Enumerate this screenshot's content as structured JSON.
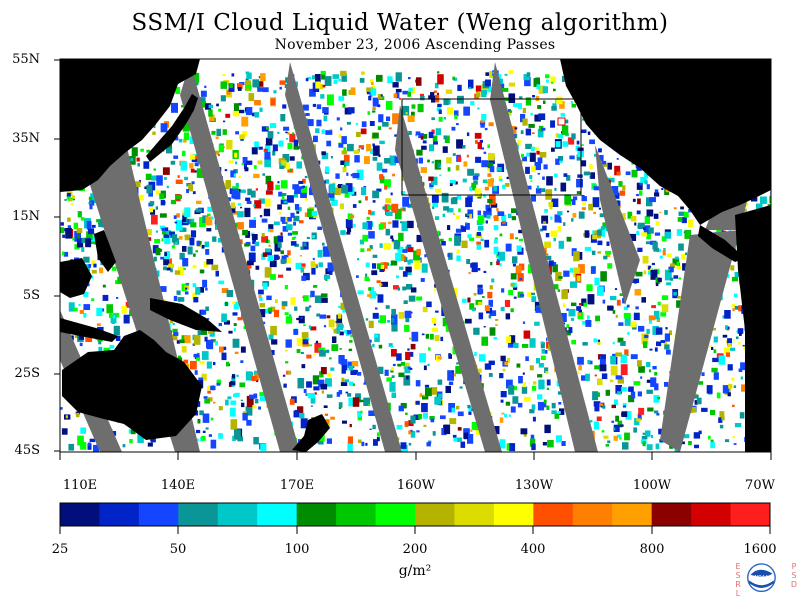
{
  "title": "SSM/I Cloud Liquid Water (Weng algorithm)",
  "subtitle": "November 23, 2006  Ascending Passes",
  "lat_labels": [
    "55N",
    "35N",
    "15N",
    "5S",
    "25S",
    "45S"
  ],
  "lon_labels": [
    "110E",
    "140E",
    "170E",
    "160W",
    "130W",
    "100W",
    "70W"
  ],
  "colorbar": {
    "tick_labels": [
      "25",
      "50",
      "100",
      "200",
      "400",
      "800",
      "1600"
    ],
    "units": "g/m²",
    "colors": [
      "#000f7a",
      "#0024c8",
      "#1446ff",
      "#0a9696",
      "#00c8c8",
      "#00ffff",
      "#008c00",
      "#00c800",
      "#00ff00",
      "#b4b400",
      "#dcdc00",
      "#ffff00",
      "#ff5000",
      "#ff8000",
      "#ffa000",
      "#8c0000",
      "#d20000",
      "#ff1e1e"
    ]
  },
  "logo": {
    "left_letters": "ESRL",
    "right_letters": "PSD",
    "center_text": "NOAA"
  },
  "colors": {
    "land": "#000000",
    "no_data_gap": "#6e6e6e",
    "clear_ocean": "#ffffff"
  }
}
